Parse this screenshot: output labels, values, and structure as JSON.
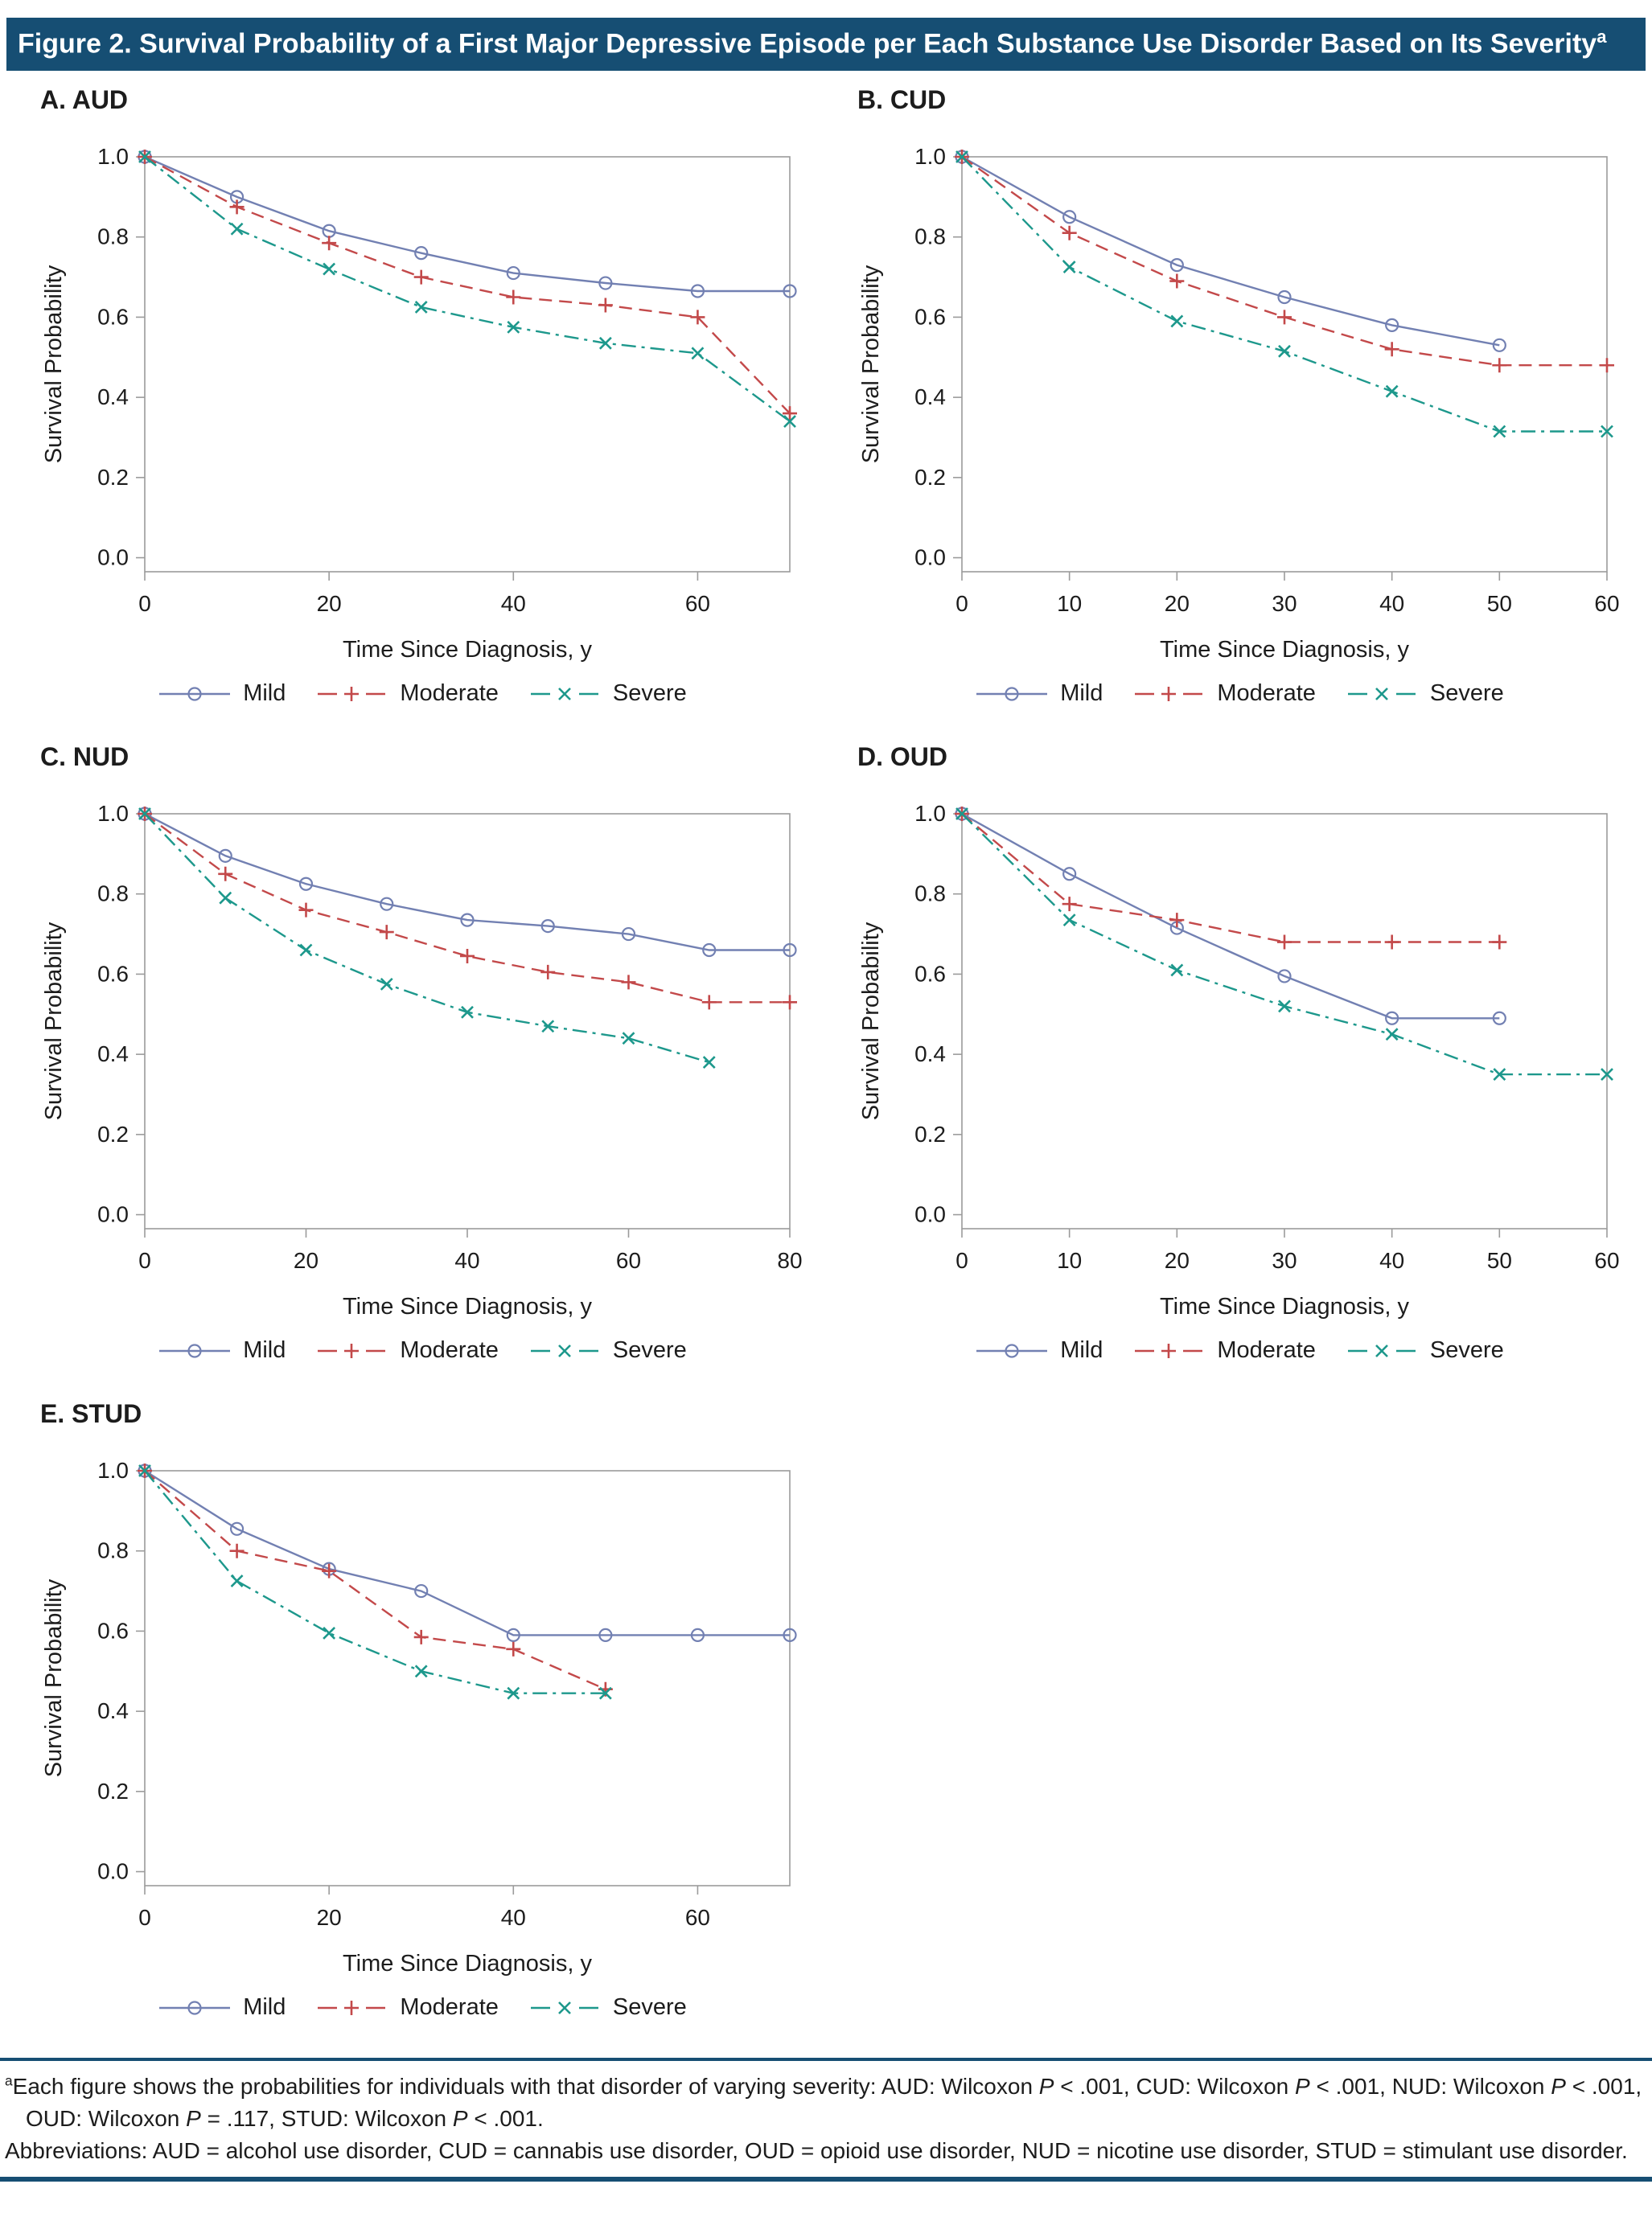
{
  "header": {
    "title": "Figure 2. Survival Probability of a First Major Depressive Episode per Each Substance Use Disorder Based on Its Severity",
    "title_superscript": "a"
  },
  "colors": {
    "header_bar": "#164e73",
    "rule": "#164e73",
    "frame": "#9b9b9b",
    "text": "#1c1c1c",
    "mild": "#7280b2",
    "moderate": "#c3494a",
    "severe": "#1d988c"
  },
  "chart_data": [
    {
      "panel_id": "A",
      "panel_label": "A. AUD",
      "type": "line",
      "xlabel": "Time Since Diagnosis, y",
      "ylabel": "Survival Probability",
      "xlim": [
        0,
        70
      ],
      "xticks": [
        0,
        20,
        40,
        60
      ],
      "ylim": [
        0,
        1.0
      ],
      "yticks": [
        0,
        0.2,
        0.4,
        0.6,
        0.8,
        1.0
      ],
      "ytick_labels": [
        "0.0",
        "0.2",
        "0.4",
        "0.6",
        "0.8",
        "1.0"
      ],
      "legend_position": "bottom",
      "series": [
        {
          "name": "Mild",
          "color": "#7280b2",
          "line_style": "solid",
          "marker": "circle",
          "x": [
            0,
            10,
            20,
            30,
            40,
            50,
            60,
            70
          ],
          "y": [
            1.0,
            0.9,
            0.815,
            0.76,
            0.71,
            0.685,
            0.665,
            0.665
          ]
        },
        {
          "name": "Moderate",
          "color": "#c3494a",
          "line_style": "dashed",
          "marker": "plus",
          "x": [
            0,
            10,
            20,
            30,
            40,
            50,
            60,
            70
          ],
          "y": [
            1.0,
            0.875,
            0.785,
            0.7,
            0.65,
            0.63,
            0.6,
            0.36
          ]
        },
        {
          "name": "Severe",
          "color": "#1d988c",
          "line_style": "dashdot",
          "marker": "x",
          "x": [
            0,
            10,
            20,
            30,
            40,
            50,
            60,
            70
          ],
          "y": [
            1.0,
            0.82,
            0.72,
            0.625,
            0.575,
            0.535,
            0.51,
            0.34
          ]
        }
      ]
    },
    {
      "panel_id": "B",
      "panel_label": "B. CUD",
      "type": "line",
      "xlabel": "Time Since Diagnosis, y",
      "ylabel": "Survival Probability",
      "xlim": [
        0,
        60
      ],
      "xticks": [
        0,
        10,
        20,
        30,
        40,
        50,
        60
      ],
      "ylim": [
        0,
        1.0
      ],
      "yticks": [
        0,
        0.2,
        0.4,
        0.6,
        0.8,
        1.0
      ],
      "ytick_labels": [
        "0.0",
        "0.2",
        "0.4",
        "0.6",
        "0.8",
        "1.0"
      ],
      "legend_position": "bottom",
      "series": [
        {
          "name": "Mild",
          "color": "#7280b2",
          "line_style": "solid",
          "marker": "circle",
          "x": [
            0,
            10,
            20,
            30,
            40,
            50
          ],
          "y": [
            1.0,
            0.85,
            0.73,
            0.65,
            0.58,
            0.53
          ]
        },
        {
          "name": "Moderate",
          "color": "#c3494a",
          "line_style": "dashed",
          "marker": "plus",
          "x": [
            0,
            10,
            20,
            30,
            40,
            50,
            60
          ],
          "y": [
            1.0,
            0.81,
            0.69,
            0.6,
            0.52,
            0.48,
            0.48
          ]
        },
        {
          "name": "Severe",
          "color": "#1d988c",
          "line_style": "dashdot",
          "marker": "x",
          "x": [
            0,
            10,
            20,
            30,
            40,
            50,
            60
          ],
          "y": [
            1.0,
            0.725,
            0.59,
            0.515,
            0.415,
            0.315,
            0.315
          ]
        }
      ]
    },
    {
      "panel_id": "C",
      "panel_label": "C. NUD",
      "type": "line",
      "xlabel": "Time Since Diagnosis, y",
      "ylabel": "Survival Probability",
      "xlim": [
        0,
        80
      ],
      "xticks": [
        0,
        20,
        40,
        60,
        80
      ],
      "ylim": [
        0,
        1.0
      ],
      "yticks": [
        0,
        0.2,
        0.4,
        0.6,
        0.8,
        1.0
      ],
      "ytick_labels": [
        "0.0",
        "0.2",
        "0.4",
        "0.6",
        "0.8",
        "1.0"
      ],
      "legend_position": "bottom",
      "series": [
        {
          "name": "Mild",
          "color": "#7280b2",
          "line_style": "solid",
          "marker": "circle",
          "x": [
            0,
            10,
            20,
            30,
            40,
            50,
            60,
            70,
            80
          ],
          "y": [
            1.0,
            0.895,
            0.825,
            0.775,
            0.735,
            0.72,
            0.7,
            0.66,
            0.66
          ]
        },
        {
          "name": "Moderate",
          "color": "#c3494a",
          "line_style": "dashed",
          "marker": "plus",
          "x": [
            0,
            10,
            20,
            30,
            40,
            50,
            60,
            70,
            80
          ],
          "y": [
            1.0,
            0.85,
            0.76,
            0.705,
            0.645,
            0.605,
            0.58,
            0.53,
            0.53
          ]
        },
        {
          "name": "Severe",
          "color": "#1d988c",
          "line_style": "dashdot",
          "marker": "x",
          "x": [
            0,
            10,
            20,
            30,
            40,
            50,
            60,
            70
          ],
          "y": [
            1.0,
            0.79,
            0.66,
            0.575,
            0.505,
            0.47,
            0.44,
            0.38
          ]
        }
      ]
    },
    {
      "panel_id": "D",
      "panel_label": "D. OUD",
      "type": "line",
      "xlabel": "Time Since Diagnosis, y",
      "ylabel": "Survival Probability",
      "xlim": [
        0,
        60
      ],
      "xticks": [
        0,
        10,
        20,
        30,
        40,
        50,
        60
      ],
      "ylim": [
        0,
        1.0
      ],
      "yticks": [
        0,
        0.2,
        0.4,
        0.6,
        0.8,
        1.0
      ],
      "ytick_labels": [
        "0.0",
        "0.2",
        "0.4",
        "0.6",
        "0.8",
        "1.0"
      ],
      "legend_position": "bottom",
      "series": [
        {
          "name": "Mild",
          "color": "#7280b2",
          "line_style": "solid",
          "marker": "circle",
          "x": [
            0,
            10,
            20,
            30,
            40,
            50
          ],
          "y": [
            1.0,
            0.85,
            0.715,
            0.595,
            0.49,
            0.49
          ]
        },
        {
          "name": "Moderate",
          "color": "#c3494a",
          "line_style": "dashed",
          "marker": "plus",
          "x": [
            0,
            10,
            20,
            30,
            40,
            50
          ],
          "y": [
            1.0,
            0.775,
            0.735,
            0.68,
            0.68,
            0.68
          ]
        },
        {
          "name": "Severe",
          "color": "#1d988c",
          "line_style": "dashdot",
          "marker": "x",
          "x": [
            0,
            10,
            20,
            30,
            40,
            50,
            60
          ],
          "y": [
            1.0,
            0.735,
            0.61,
            0.52,
            0.45,
            0.35,
            0.35
          ]
        }
      ]
    },
    {
      "panel_id": "E",
      "panel_label": "E. STUD",
      "type": "line",
      "xlabel": "Time Since Diagnosis, y",
      "ylabel": "Survival Probability",
      "xlim": [
        0,
        70
      ],
      "xticks": [
        0,
        20,
        40,
        60
      ],
      "ylim": [
        0,
        1.0
      ],
      "yticks": [
        0,
        0.2,
        0.4,
        0.6,
        0.8,
        1.0
      ],
      "ytick_labels": [
        "0.0",
        "0.2",
        "0.4",
        "0.6",
        "0.8",
        "1.0"
      ],
      "legend_position": "bottom",
      "series": [
        {
          "name": "Mild",
          "color": "#7280b2",
          "line_style": "solid",
          "marker": "circle",
          "x": [
            0,
            10,
            20,
            30,
            40,
            50,
            60,
            70
          ],
          "y": [
            1.0,
            0.855,
            0.755,
            0.7,
            0.59,
            0.59,
            0.59,
            0.59
          ]
        },
        {
          "name": "Moderate",
          "color": "#c3494a",
          "line_style": "dashed",
          "marker": "plus",
          "x": [
            0,
            10,
            20,
            30,
            40,
            50
          ],
          "y": [
            1.0,
            0.8,
            0.75,
            0.585,
            0.555,
            0.455
          ]
        },
        {
          "name": "Severe",
          "color": "#1d988c",
          "line_style": "dashdot",
          "marker": "x",
          "x": [
            0,
            10,
            20,
            30,
            40,
            50
          ],
          "y": [
            1.0,
            0.725,
            0.595,
            0.5,
            0.445,
            0.445
          ]
        }
      ]
    }
  ],
  "footnotes": {
    "note1_segments": [
      {
        "t": "a",
        "s": "sup"
      },
      {
        "t": "Each figure shows the probabilities for individuals with that disorder of varying severity: AUD: Wilcoxon ",
        "s": ""
      },
      {
        "t": "P",
        "s": "i"
      },
      {
        "t": " < .001, CUD: Wilcoxon ",
        "s": ""
      },
      {
        "t": "P",
        "s": "i"
      },
      {
        "t": " < .001, NUD: Wilcoxon ",
        "s": ""
      },
      {
        "t": "P",
        "s": "i"
      },
      {
        "t": " < .001, OUD: Wilcoxon ",
        "s": ""
      },
      {
        "t": "P",
        "s": "i"
      },
      {
        "t": " = .117, STUD: Wilcoxon ",
        "s": ""
      },
      {
        "t": "P",
        "s": "i"
      },
      {
        "t": " < .001.",
        "s": ""
      }
    ],
    "note2_segments": [
      {
        "t": "Abbreviations: AUD = alcohol use disorder, CUD = cannabis use disorder, OUD = opioid use disorder, NUD = nicotine use disorder, STUD = stimulant use disorder.",
        "s": ""
      }
    ]
  }
}
